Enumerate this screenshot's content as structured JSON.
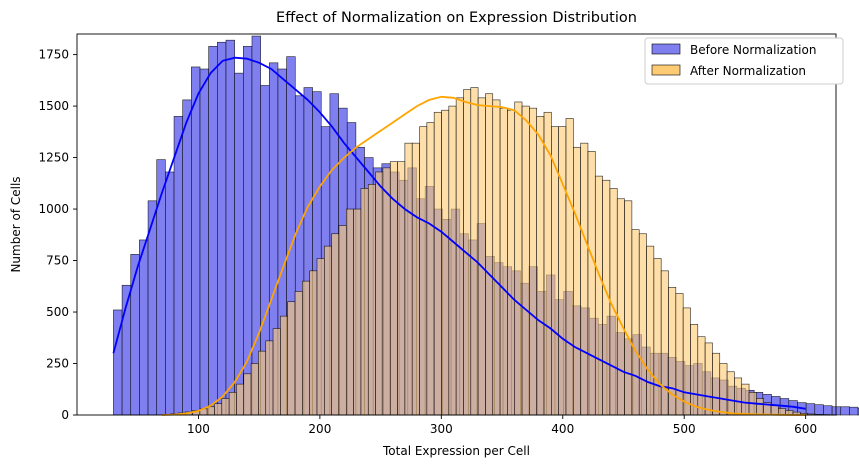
{
  "chart_data": {
    "type": "histogram",
    "title": "Effect of Normalization on Expression Distribution",
    "xlabel": "Total Expression per Cell",
    "ylabel": "Number of Cells",
    "xlim": [
      0,
      625
    ],
    "ylim": [
      0,
      1850
    ],
    "xticks": [
      100,
      200,
      300,
      400,
      500,
      600
    ],
    "yticks": [
      0,
      250,
      500,
      750,
      1000,
      1250,
      1500,
      1750
    ],
    "legend": {
      "position": "top-right"
    },
    "series": [
      {
        "name": "Before Normalization",
        "color": "#0000ff",
        "bar_fill": "#7f7ff0",
        "bin_start": 30,
        "bin_width": 7.13,
        "counts": [
          510,
          630,
          780,
          850,
          1040,
          1240,
          1180,
          1450,
          1530,
          1690,
          1680,
          1790,
          1810,
          1820,
          1660,
          1790,
          1840,
          1600,
          1710,
          1680,
          1740,
          1550,
          1590,
          1570,
          1400,
          1560,
          1490,
          1420,
          1300,
          1250,
          1200,
          1220,
          1180,
          1140,
          1200,
          1050,
          1110,
          1000,
          950,
          1000,
          880,
          850,
          930,
          770,
          740,
          720,
          700,
          640,
          720,
          600,
          680,
          560,
          600,
          530,
          520,
          470,
          440,
          480,
          400,
          370,
          390,
          330,
          300,
          300,
          280,
          260,
          240,
          250,
          210,
          180,
          170,
          140,
          130,
          120,
          110,
          100,
          90,
          80,
          70,
          60,
          55,
          50,
          45,
          40,
          40,
          38,
          32,
          30,
          28,
          25,
          22,
          20,
          18
        ]
      },
      {
        "name": "After Normalization",
        "color": "#ffa500",
        "bar_fill": "#fecb75",
        "bin_start": 71,
        "bin_width": 6.03,
        "counts": [
          3,
          6,
          10,
          15,
          22,
          30,
          40,
          55,
          80,
          110,
          150,
          200,
          250,
          310,
          360,
          420,
          480,
          550,
          600,
          650,
          700,
          760,
          820,
          880,
          920,
          1000,
          1000,
          1100,
          1120,
          1180,
          1200,
          1230,
          1230,
          1320,
          1320,
          1400,
          1420,
          1470,
          1480,
          1500,
          1540,
          1580,
          1590,
          1540,
          1560,
          1530,
          1490,
          1480,
          1520,
          1500,
          1490,
          1450,
          1470,
          1400,
          1400,
          1440,
          1300,
          1320,
          1280,
          1160,
          1140,
          1100,
          1050,
          1040,
          900,
          880,
          820,
          760,
          700,
          620,
          590,
          520,
          440,
          380,
          350,
          300,
          250,
          210,
          180,
          150,
          110,
          80,
          60,
          45,
          32,
          22,
          14,
          8,
          5,
          3,
          2,
          1
        ]
      }
    ],
    "kde": [
      {
        "series": "Before Normalization",
        "x": [
          30,
          40,
          50,
          60,
          70,
          80,
          90,
          100,
          110,
          120,
          130,
          140,
          150,
          160,
          170,
          180,
          190,
          200,
          210,
          220,
          230,
          240,
          250,
          260,
          270,
          280,
          290,
          300,
          310,
          320,
          330,
          340,
          350,
          360,
          370,
          380,
          390,
          400,
          410,
          420,
          430,
          440,
          450,
          460,
          470,
          480,
          490,
          500,
          510,
          520,
          530,
          540,
          550,
          560,
          570,
          580,
          590,
          600
        ],
        "y": [
          300,
          520,
          720,
          900,
          1080,
          1250,
          1420,
          1560,
          1660,
          1720,
          1735,
          1730,
          1710,
          1680,
          1630,
          1580,
          1530,
          1470,
          1400,
          1320,
          1250,
          1180,
          1110,
          1050,
          1000,
          960,
          930,
          890,
          840,
          790,
          740,
          680,
          620,
          560,
          510,
          460,
          420,
          370,
          330,
          300,
          270,
          240,
          210,
          190,
          160,
          140,
          130,
          110,
          100,
          90,
          80,
          70,
          60,
          55,
          50,
          45,
          40,
          30
        ]
      },
      {
        "series": "After Normalization",
        "x": [
          70,
          80,
          90,
          100,
          110,
          120,
          130,
          140,
          150,
          160,
          170,
          180,
          190,
          200,
          210,
          220,
          230,
          240,
          250,
          260,
          270,
          280,
          290,
          300,
          310,
          320,
          330,
          340,
          350,
          360,
          370,
          380,
          390,
          400,
          410,
          420,
          430,
          440,
          450,
          460,
          470,
          480,
          490,
          500,
          510,
          520,
          530,
          540,
          550,
          560,
          570,
          580,
          590,
          600
        ],
        "y": [
          0,
          2,
          8,
          20,
          45,
          90,
          160,
          260,
          400,
          560,
          720,
          880,
          1010,
          1110,
          1190,
          1250,
          1300,
          1340,
          1380,
          1420,
          1460,
          1500,
          1530,
          1545,
          1540,
          1520,
          1505,
          1500,
          1495,
          1480,
          1430,
          1360,
          1260,
          1120,
          980,
          830,
          680,
          540,
          420,
          310,
          220,
          150,
          100,
          65,
          40,
          25,
          15,
          8,
          5,
          3,
          2,
          1,
          0,
          0
        ]
      }
    ]
  }
}
